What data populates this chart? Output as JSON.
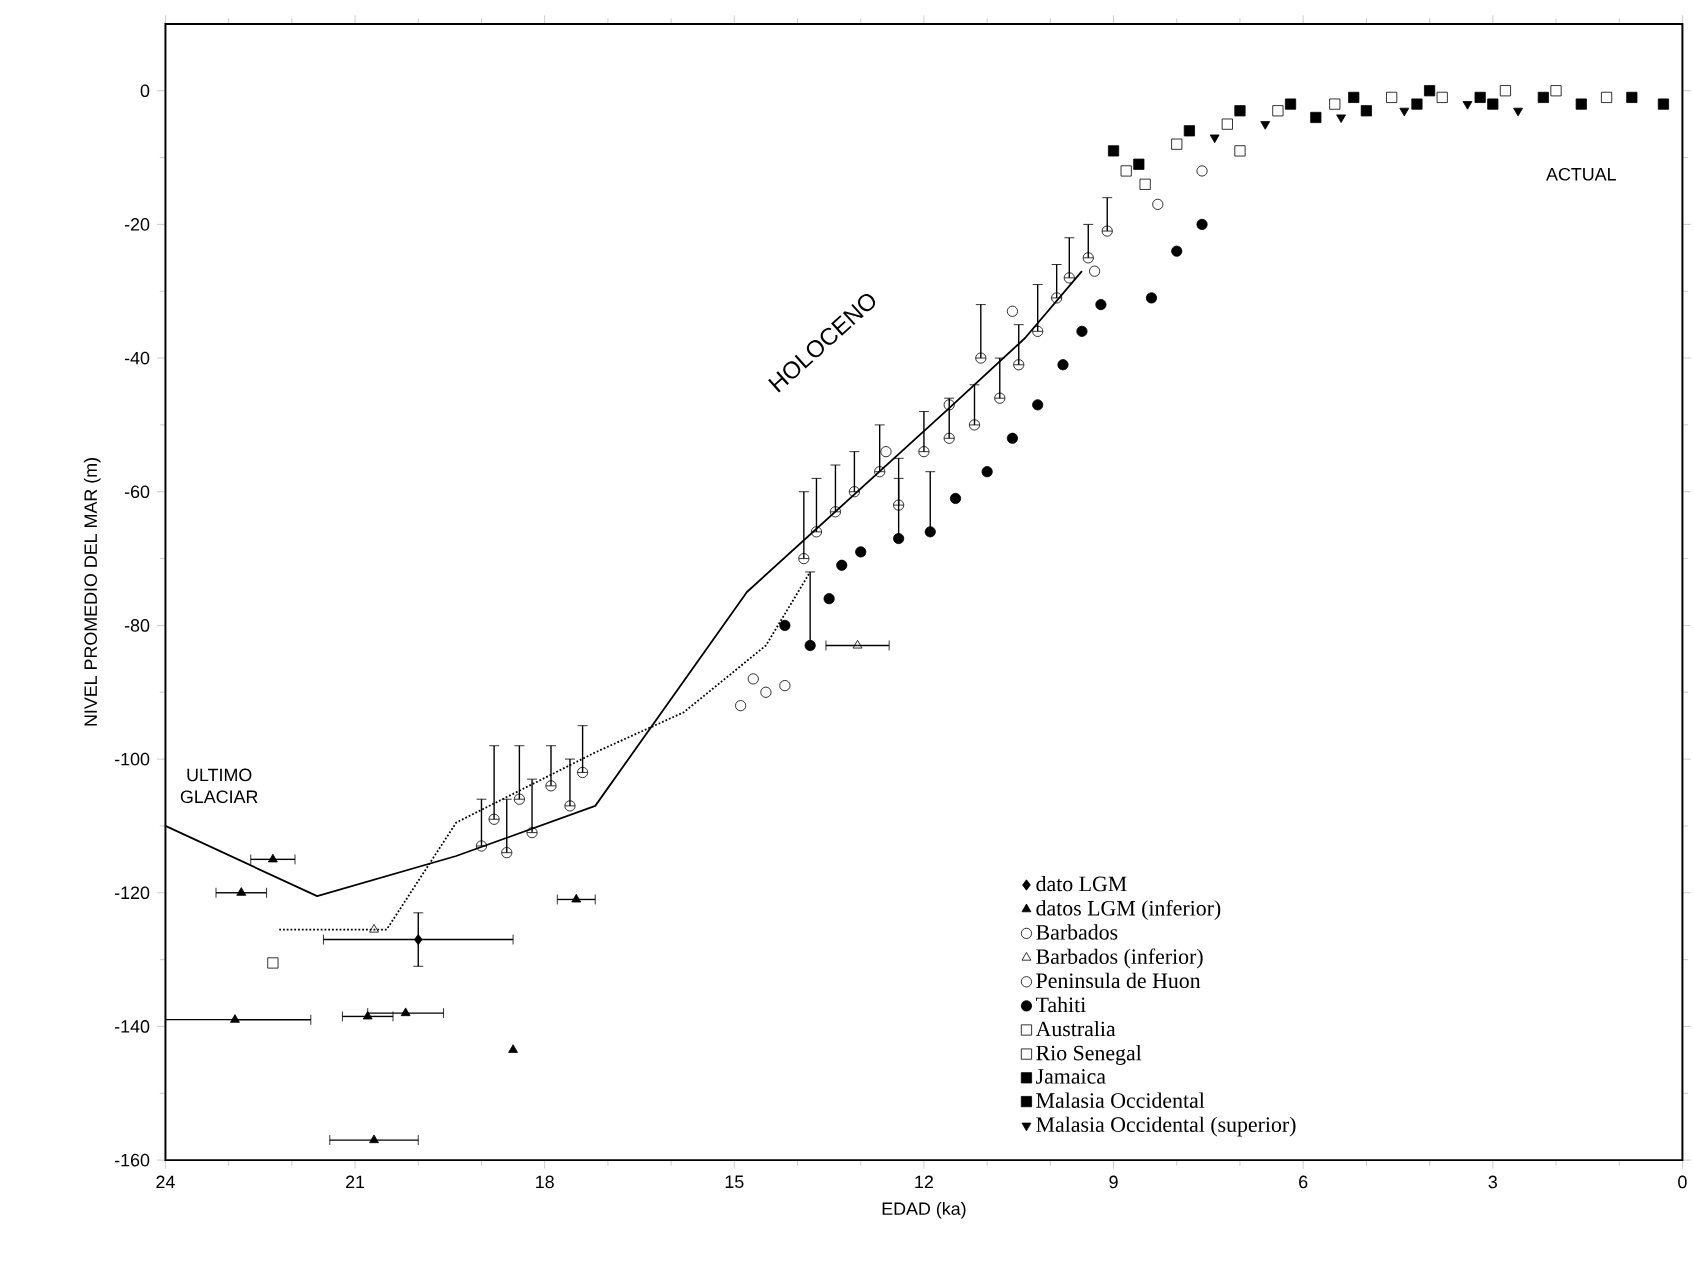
{
  "chart_data": {
    "type": "scatter",
    "xlabel": "EDAD (ka)",
    "ylabel": "NIVEL PROMEDIO DEL MAR (m)",
    "xlim": [
      24,
      0
    ],
    "ylim": [
      -160,
      10
    ],
    "xticks": [
      24,
      21,
      18,
      15,
      12,
      9,
      6,
      3,
      0
    ],
    "yticks": [
      -160,
      -140,
      -120,
      -100,
      -80,
      -60,
      -40,
      -20,
      0
    ],
    "legend": "bottom right",
    "annotations": [
      "ULTIMO GLACIAR",
      "HOLOCENO",
      "ACTUAL"
    ],
    "series": [
      {
        "type": "line",
        "line_style": "solid",
        "marker": "none",
        "color": "#000000",
        "x": [
          24,
          21.6,
          19.4,
          17.2,
          14.8,
          11.6,
          10.4,
          9.5
        ],
        "values": [
          -110,
          -120.5,
          -114.5,
          -107,
          -75,
          -47.5,
          -37,
          -27
        ]
      },
      {
        "type": "line",
        "line_style": "dotted",
        "marker": "none",
        "color": "#000000",
        "x": [
          22.2,
          20.5,
          19.4,
          17.2,
          15.8,
          14.5,
          13.8
        ],
        "values": [
          -125.5,
          -125.5,
          -109.5,
          -99,
          -93,
          -83,
          -72
        ]
      },
      {
        "name": "dato LGM",
        "marker": "diamond",
        "color": "#000000",
        "x": [
          20.0
        ],
        "values": [
          -127
        ],
        "errors": [
          [
            -131,
            -123
          ]
        ],
        "xerrors": [
          1.5
        ]
      },
      {
        "name": "datos LGM (inferior)",
        "marker": "triangle",
        "color": "#000000",
        "x": [
          22.3,
          22.8,
          22.9,
          20.8,
          20.2,
          18.5,
          20.7,
          17.5
        ],
        "values": [
          -115,
          -120,
          -139,
          -138.5,
          -138,
          -143.5,
          -157,
          -121
        ],
        "xerrors": [
          0.35,
          0.4,
          1.2,
          0.4,
          0.6,
          null,
          0.7,
          0.3
        ]
      },
      {
        "name": "Barbados",
        "marker": "circle_open",
        "color": "#000000",
        "x": [
          19.0,
          18.8,
          18.6,
          18.4,
          18.2,
          17.9,
          17.6,
          17.4,
          14.9,
          14.7,
          14.5,
          14.2,
          13.9,
          13.7,
          13.4,
          13.1,
          12.7,
          12.4,
          12.0,
          11.6,
          11.2,
          10.8,
          10.5,
          10.2,
          9.9,
          9.7,
          9.4,
          9.1
        ],
        "values": [
          -113,
          -109,
          -114,
          -106,
          -111,
          -104,
          -107,
          -102,
          -92,
          -88,
          -90,
          -89,
          -70,
          -66,
          -63,
          -60,
          -57,
          -62,
          -54,
          -52,
          -50,
          -46,
          -41,
          -36,
          -31,
          -28,
          -25,
          -21
        ],
        "errors": [
          [
            -113,
            -106
          ],
          [
            -109,
            -98
          ],
          [
            -114,
            -106
          ],
          [
            -106,
            -98
          ],
          [
            -111,
            -103
          ],
          [
            -104,
            -98
          ],
          [
            -107,
            -100
          ],
          [
            -102,
            -95
          ],
          null,
          null,
          null,
          null,
          [
            -70,
            -60
          ],
          [
            -66,
            -58
          ],
          [
            -63,
            -56
          ],
          [
            -60,
            -54
          ],
          [
            -57,
            -50
          ],
          [
            -62,
            -55
          ],
          [
            -54,
            -48
          ],
          [
            -52,
            -46
          ],
          [
            -50,
            -44
          ],
          [
            -46,
            -40
          ],
          [
            -41,
            -35
          ],
          [
            -36,
            -29
          ],
          [
            -31,
            -26
          ],
          [
            -28,
            -22
          ],
          [
            -25,
            -20
          ],
          [
            -21,
            -16
          ]
        ]
      },
      {
        "name": "Barbados (inferior)",
        "marker": "triangle_open",
        "color": "#000000",
        "x": [
          20.7,
          13.05
        ],
        "values": [
          -125.5,
          -83
        ],
        "xerrors": [
          null,
          0.5
        ]
      },
      {
        "name": "Peninsula de Huon",
        "marker": "circle_open",
        "color": "#000000",
        "x": [
          11.1,
          12.6,
          11.6,
          10.6,
          9.3,
          8.3,
          7.6
        ],
        "values": [
          -40,
          -54,
          -47,
          -33,
          -27,
          -17,
          -12
        ],
        "errors": [
          [
            -40,
            -32
          ],
          null,
          null,
          null,
          null,
          null,
          null
        ]
      },
      {
        "name": "Tahiti",
        "marker": "circle",
        "color": "#000000",
        "x": [
          13.8,
          14.2,
          13.5,
          13.3,
          13.0,
          12.4,
          11.9,
          11.5,
          11.0,
          10.6,
          10.2,
          9.8,
          9.5,
          9.2,
          8.4,
          8.0,
          7.6
        ],
        "values": [
          -83,
          -80,
          -76,
          -71,
          -69,
          -67,
          -66,
          -61,
          -57,
          -52,
          -47,
          -41,
          -36,
          -32,
          -31,
          -24,
          -20
        ],
        "errors": [
          [
            -83,
            -72
          ],
          null,
          null,
          null,
          null,
          [
            -67,
            -58
          ],
          [
            -66,
            -57
          ],
          null,
          null,
          null,
          null,
          null,
          null,
          null,
          null,
          null,
          null
        ]
      },
      {
        "name": "Australia",
        "marker": "square_open",
        "color": "#000000",
        "x": [
          8.8,
          8.0,
          7.2,
          6.4,
          5.5,
          4.6,
          3.8,
          2.8,
          2.0,
          1.2
        ],
        "values": [
          -12,
          -8,
          -5,
          -3,
          -2,
          -1,
          -1,
          0,
          0,
          -1
        ]
      },
      {
        "name": "Rio Senegal",
        "marker": "square_open",
        "color": "#000000",
        "x": [
          22.3,
          8.5,
          7.0
        ],
        "values": [
          -130.5,
          -14,
          -9
        ]
      },
      {
        "name": "Jamaica",
        "marker": "square",
        "color": "#000000",
        "x": [
          9.0,
          8.6,
          7.8,
          7.0,
          6.2,
          5.2,
          4.2,
          3.2
        ],
        "values": [
          -9,
          -11,
          -6,
          -3,
          -2,
          -1,
          -2,
          -1
        ]
      },
      {
        "name": "Malasia Occidental",
        "marker": "square",
        "color": "#000000",
        "x": [
          5.8,
          5.0,
          4.0,
          3.0,
          2.2,
          1.6,
          0.8,
          0.3
        ],
        "values": [
          -4,
          -3,
          0,
          -2,
          -1,
          -2,
          -1,
          -2
        ]
      },
      {
        "name": "Malasia Occidental (superior)",
        "marker": "triangle_down",
        "color": "#000000",
        "x": [
          7.4,
          6.6,
          5.4,
          4.4,
          3.4,
          2.6
        ],
        "values": [
          -7,
          -5,
          -4,
          -3,
          -2,
          -3
        ]
      }
    ]
  }
}
